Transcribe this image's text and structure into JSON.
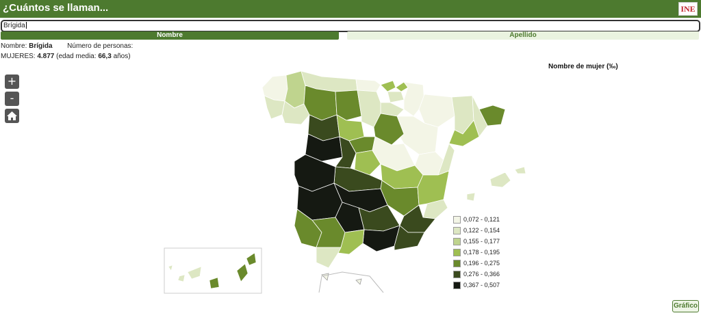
{
  "header": {
    "title": "¿Cuántos se llaman...",
    "logo_text": "INE"
  },
  "search": {
    "value": "Brígida"
  },
  "tabs": {
    "nombre": "Nombre",
    "apellido": "Apellido"
  },
  "info": {
    "nombre_label": "Nombre:",
    "nombre_value": "Brígida",
    "personas_label": "Número de personas:",
    "mujeres_label": "MUJERES:",
    "mujeres_value": "4.877",
    "edad_prefix": "(edad media:",
    "edad_value": "66,3",
    "edad_suffix": "años)"
  },
  "zoom": {
    "plus": "+",
    "minus": "-"
  },
  "map": {
    "title": "Nombre de mujer (‰)"
  },
  "legend": [
    {
      "label": "0,072 - 0,121",
      "color": "#f3f5e6"
    },
    {
      "label": "0,122 - 0,154",
      "color": "#dde7c3"
    },
    {
      "label": "0,155 - 0,177",
      "color": "#bfd48e"
    },
    {
      "label": "0,178 - 0,195",
      "color": "#9fbf52"
    },
    {
      "label": "0,196 - 0,275",
      "color": "#6a8a2c"
    },
    {
      "label": "0,276 - 0,366",
      "color": "#3a4a1e"
    },
    {
      "label": "0,367 - 0,507",
      "color": "#151912"
    }
  ],
  "grafico_label": "Gráfico"
}
